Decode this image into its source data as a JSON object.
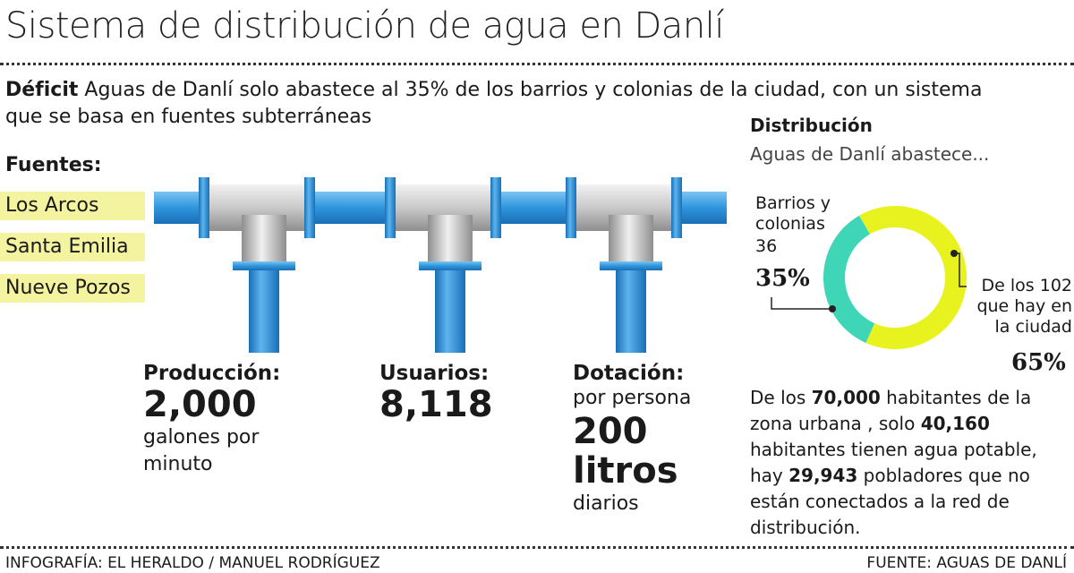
{
  "title": "Sistema de distribución de agua en Danlí",
  "intro": {
    "lead": "Déficit",
    "text": "Aguas de Danlí solo abastece al 35% de los barrios y colonias de la ciudad, con un sistema que se basa en fuentes subterráneas"
  },
  "sources": {
    "heading": "Fuentes:",
    "items": [
      "Los Arcos",
      "Santa Emilia",
      "Nueve Pozos"
    ]
  },
  "stats": [
    {
      "heading": "Producción:",
      "value": "2,000",
      "note": "galones por minuto"
    },
    {
      "heading": "Usuarios:",
      "value": "8,118"
    },
    {
      "heading": "Dotación:",
      "pre": "por persona",
      "value": "200 litros",
      "note": "diarios"
    }
  ],
  "chart_data": {
    "type": "donut",
    "title": "Distribución",
    "subtitle": "Aguas de Danlí abastece...",
    "categories": [
      "Barrios y colonias",
      "De los 102 que hay en la ciudad"
    ],
    "annotations": [
      "36"
    ],
    "values": [
      35,
      65
    ],
    "value_labels": [
      "35%",
      "65%"
    ],
    "colors": [
      "#3fd6b8",
      "#e8f21e"
    ]
  },
  "paragraph": [
    "De los ",
    "70,000",
    " habitantes de la zona urbana , solo ",
    "40,160",
    " habitantes tienen agua potable, hay ",
    "29,943",
    " pobladores que no están conectados a la red de distribución."
  ],
  "footer": {
    "credit": "INFOGRAFÍA: EL HERALDO / MANUEL RODRÍGUEZ",
    "source": "FUENTE: AGUAS DE DANLÍ"
  }
}
